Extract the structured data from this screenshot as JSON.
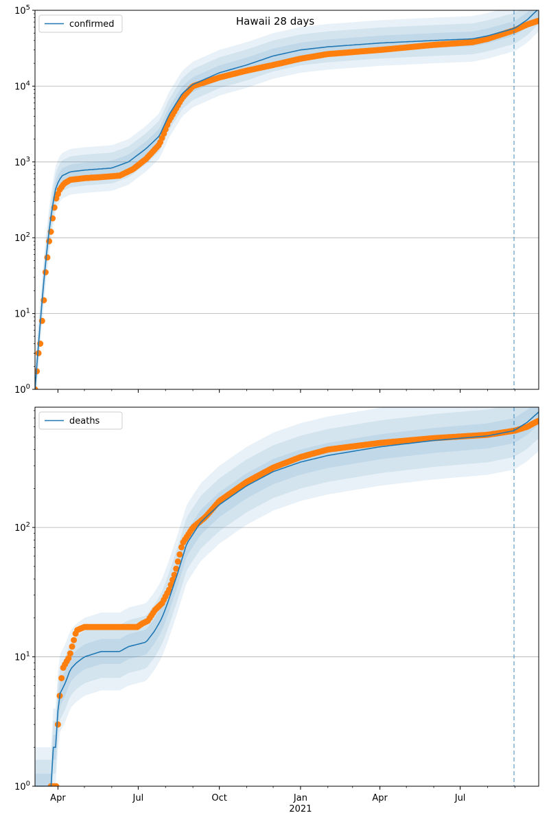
{
  "chart_data": [
    {
      "type": "line",
      "title": "Hawaii 28 days",
      "yscale": "log",
      "ylim": [
        1,
        100000
      ],
      "yticks": [
        {
          "base": "10",
          "exp": "0"
        },
        {
          "base": "10",
          "exp": "1"
        },
        {
          "base": "10",
          "exp": "2"
        },
        {
          "base": "10",
          "exp": "3"
        },
        {
          "base": "10",
          "exp": "4"
        },
        {
          "base": "10",
          "exp": "5"
        }
      ],
      "xlim": [
        "2020-03-06",
        "2021-09-28"
      ],
      "xticks": [
        {
          "date": "2020-04-01",
          "label": "Apr",
          "sub": ""
        },
        {
          "date": "2020-07-01",
          "label": "Jul",
          "sub": ""
        },
        {
          "date": "2020-10-01",
          "label": "Oct",
          "sub": ""
        },
        {
          "date": "2021-01-01",
          "label": "Jan",
          "sub": "2021"
        },
        {
          "date": "2021-04-01",
          "label": "Apr",
          "sub": ""
        },
        {
          "date": "2021-07-01",
          "label": "Jul",
          "sub": ""
        }
      ],
      "grid": "horizontal",
      "legend_position": "top-left",
      "forecast_start": "2021-08-31",
      "colors": {
        "model": "#1f77b4",
        "band": "#1f77b4",
        "observed": "#ff7f0e",
        "vline": "#1f77b4"
      },
      "series": [
        {
          "name": "confirmed",
          "kind": "model",
          "points": [
            [
              "2020-03-06",
              1
            ],
            [
              "2020-03-10",
              4
            ],
            [
              "2020-03-15",
              20
            ],
            [
              "2020-03-20",
              80
            ],
            [
              "2020-03-25",
              230
            ],
            [
              "2020-03-30",
              480
            ],
            [
              "2020-04-05",
              650
            ],
            [
              "2020-04-15",
              740
            ],
            [
              "2020-05-01",
              780
            ],
            [
              "2020-06-01",
              830
            ],
            [
              "2020-06-20",
              1000
            ],
            [
              "2020-07-10",
              1500
            ],
            [
              "2020-07-25",
              2200
            ],
            [
              "2020-08-05",
              4200
            ],
            [
              "2020-08-20",
              8000
            ],
            [
              "2020-09-01",
              10500
            ],
            [
              "2020-10-01",
              15000
            ],
            [
              "2020-11-01",
              19000
            ],
            [
              "2020-12-01",
              25000
            ],
            [
              "2021-01-01",
              30000
            ],
            [
              "2021-02-01",
              33000
            ],
            [
              "2021-04-01",
              37000
            ],
            [
              "2021-06-01",
              40000
            ],
            [
              "2021-07-15",
              42000
            ],
            [
              "2021-08-01",
              46000
            ],
            [
              "2021-09-01",
              58000
            ],
            [
              "2021-09-15",
              75000
            ],
            [
              "2021-09-28",
              105000
            ]
          ],
          "band_factors": [
            1.25,
            1.6,
            2.0
          ]
        },
        {
          "name": "",
          "kind": "observed",
          "points": [
            [
              "2020-03-06",
              1
            ],
            [
              "2020-03-10",
              3
            ],
            [
              "2020-03-12",
              4
            ],
            [
              "2020-03-14",
              8
            ],
            [
              "2020-03-16",
              15
            ],
            [
              "2020-03-18",
              35
            ],
            [
              "2020-03-20",
              55
            ],
            [
              "2020-03-22",
              90
            ],
            [
              "2020-03-24",
              120
            ],
            [
              "2020-03-26",
              180
            ],
            [
              "2020-03-28",
              250
            ],
            [
              "2020-03-30",
              330
            ],
            [
              "2020-04-03",
              430
            ],
            [
              "2020-04-08",
              520
            ],
            [
              "2020-04-15",
              580
            ],
            [
              "2020-05-01",
              610
            ],
            [
              "2020-05-20",
              630
            ],
            [
              "2020-06-10",
              660
            ],
            [
              "2020-06-25",
              800
            ],
            [
              "2020-07-10",
              1100
            ],
            [
              "2020-07-25",
              1700
            ],
            [
              "2020-08-05",
              3500
            ],
            [
              "2020-08-20",
              7000
            ],
            [
              "2020-09-01",
              10000
            ],
            [
              "2020-10-01",
              13000
            ],
            [
              "2020-11-01",
              16000
            ],
            [
              "2020-12-01",
              19000
            ],
            [
              "2021-01-01",
              23000
            ],
            [
              "2021-02-01",
              26500
            ],
            [
              "2021-04-01",
              30000
            ],
            [
              "2021-06-01",
              35000
            ],
            [
              "2021-07-15",
              38000
            ],
            [
              "2021-08-01",
              42000
            ],
            [
              "2021-09-01",
              55000
            ],
            [
              "2021-09-15",
              65000
            ],
            [
              "2021-09-28",
              73000
            ]
          ]
        }
      ]
    },
    {
      "type": "line",
      "title": "",
      "yscale": "log",
      "ylim": [
        1,
        850
      ],
      "yticks": [
        {
          "base": "10",
          "exp": "0"
        },
        {
          "base": "10",
          "exp": "1"
        },
        {
          "base": "10",
          "exp": "2"
        }
      ],
      "xlim": [
        "2020-03-06",
        "2021-09-28"
      ],
      "xticks": [
        {
          "date": "2020-04-01",
          "label": "Apr",
          "sub": ""
        },
        {
          "date": "2020-07-01",
          "label": "Jul",
          "sub": ""
        },
        {
          "date": "2020-10-01",
          "label": "Oct",
          "sub": ""
        },
        {
          "date": "2021-01-01",
          "label": "Jan",
          "sub": "2021"
        },
        {
          "date": "2021-04-01",
          "label": "Apr",
          "sub": ""
        },
        {
          "date": "2021-07-01",
          "label": "Jul",
          "sub": ""
        }
      ],
      "grid": "horizontal",
      "legend_position": "top-left",
      "forecast_start": "2021-08-31",
      "colors": {
        "model": "#1f77b4",
        "band": "#1f77b4",
        "observed": "#ff7f0e",
        "vline": "#1f77b4"
      },
      "series": [
        {
          "name": "deaths",
          "kind": "model",
          "points": [
            [
              "2020-03-06",
              1
            ],
            [
              "2020-03-25",
              1
            ],
            [
              "2020-03-26",
              2
            ],
            [
              "2020-03-30",
              2
            ],
            [
              "2020-03-31",
              3
            ],
            [
              "2020-04-02",
              5
            ],
            [
              "2020-04-08",
              6
            ],
            [
              "2020-04-12",
              7
            ],
            [
              "2020-04-15",
              8
            ],
            [
              "2020-04-22",
              9
            ],
            [
              "2020-05-01",
              10
            ],
            [
              "2020-05-20",
              11
            ],
            [
              "2020-06-10",
              11
            ],
            [
              "2020-06-20",
              12
            ],
            [
              "2020-07-10",
              13
            ],
            [
              "2020-07-20",
              16
            ],
            [
              "2020-07-28",
              20
            ],
            [
              "2020-08-05",
              28
            ],
            [
              "2020-08-15",
              45
            ],
            [
              "2020-08-25",
              75
            ],
            [
              "2020-09-10",
              110
            ],
            [
              "2020-10-01",
              150
            ],
            [
              "2020-11-01",
              210
            ],
            [
              "2020-12-01",
              270
            ],
            [
              "2021-01-01",
              320
            ],
            [
              "2021-02-01",
              360
            ],
            [
              "2021-04-01",
              420
            ],
            [
              "2021-06-01",
              470
            ],
            [
              "2021-08-01",
              510
            ],
            [
              "2021-08-31",
              560
            ],
            [
              "2021-09-15",
              650
            ],
            [
              "2021-09-28",
              780
            ]
          ],
          "band_factors": [
            1.25,
            1.6,
            2.0
          ]
        },
        {
          "name": "",
          "kind": "observed",
          "points": [
            [
              "2020-03-24",
              1
            ],
            [
              "2020-03-31",
              1
            ],
            [
              "2020-04-01",
              3
            ],
            [
              "2020-04-03",
              5
            ],
            [
              "2020-04-06",
              8
            ],
            [
              "2020-04-10",
              9
            ],
            [
              "2020-04-14",
              10
            ],
            [
              "2020-04-17",
              12
            ],
            [
              "2020-04-22",
              16
            ],
            [
              "2020-05-01",
              17
            ],
            [
              "2020-06-30",
              17
            ],
            [
              "2020-07-05",
              18
            ],
            [
              "2020-07-12",
              19
            ],
            [
              "2020-07-20",
              23
            ],
            [
              "2020-07-28",
              26
            ],
            [
              "2020-08-05",
              33
            ],
            [
              "2020-08-12",
              45
            ],
            [
              "2020-08-20",
              75
            ],
            [
              "2020-09-01",
              100
            ],
            [
              "2020-09-15",
              120
            ],
            [
              "2020-10-01",
              160
            ],
            [
              "2020-11-01",
              225
            ],
            [
              "2020-12-01",
              290
            ],
            [
              "2021-01-01",
              350
            ],
            [
              "2021-02-01",
              400
            ],
            [
              "2021-04-01",
              450
            ],
            [
              "2021-06-01",
              490
            ],
            [
              "2021-08-01",
              520
            ],
            [
              "2021-09-01",
              560
            ],
            [
              "2021-09-15",
              600
            ],
            [
              "2021-09-28",
              670
            ]
          ]
        }
      ]
    }
  ]
}
